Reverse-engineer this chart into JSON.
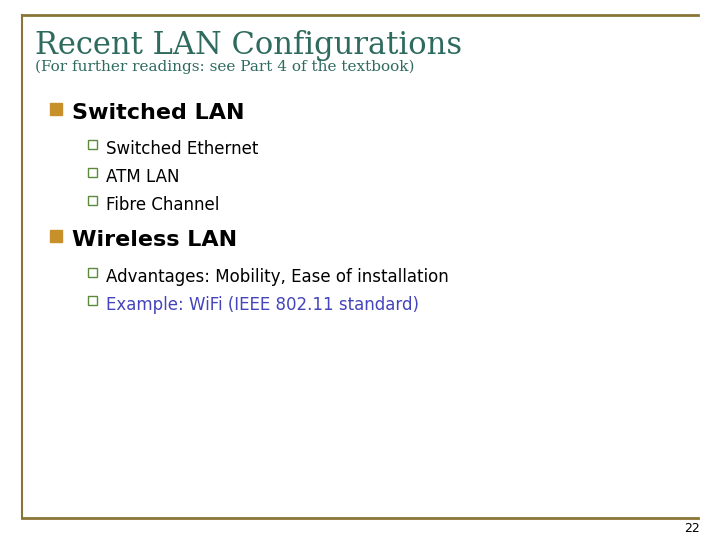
{
  "title": "Recent LAN Configurations",
  "subtitle": "(For further readings: see Part 4 of the textbook)",
  "title_color": "#2E6B5E",
  "subtitle_color": "#2E6B5E",
  "background_color": "#FFFFFF",
  "border_color": "#8B7536",
  "bullet1_text": "Switched LAN",
  "bullet1_marker_color": "#C8902A",
  "sub_bullets_1": [
    "Switched Ethernet",
    "ATM LAN",
    "Fibre Channel"
  ],
  "sub_bullets_1_color": "#000000",
  "bullet2_text": "Wireless LAN",
  "bullet2_marker_color": "#C8902A",
  "sub_bullets_2": [
    "Advantages: Mobility, Ease of installation",
    "Example: WiFi (IEEE 802.11 standard)"
  ],
  "sub_bullets_2_colors": [
    "#000000",
    "#4444BB"
  ],
  "sub_bullet_marker_color": "#5A8A3A",
  "page_number": "22",
  "page_number_color": "#000000",
  "title_fontsize": 22,
  "subtitle_fontsize": 11,
  "bullet_fontsize": 16,
  "sub_bullet_fontsize": 12
}
